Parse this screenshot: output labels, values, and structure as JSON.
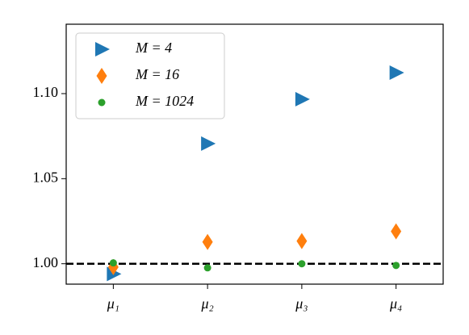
{
  "chart_data": {
    "type": "scatter",
    "categories": [
      "μ₁",
      "μ₂",
      "μ₃",
      "μ₄"
    ],
    "series": [
      {
        "name": "M = 4",
        "color": "#1f77b4",
        "marker": "triangle-right",
        "values": [
          0.994,
          1.0706,
          1.0967,
          1.1123
        ]
      },
      {
        "name": "M = 16",
        "color": "#ff7f0e",
        "marker": "diamond",
        "values": [
          0.998,
          1.0128,
          1.0133,
          1.019
        ]
      },
      {
        "name": "M = 1024",
        "color": "#2ca02c",
        "marker": "circle",
        "values": [
          1.0005,
          0.9976,
          1.0,
          0.999
        ]
      }
    ],
    "ylim": [
      0.988,
      1.1408
    ],
    "yticks": [
      {
        "value": 1,
        "label": "1.00"
      },
      {
        "value": 1.05,
        "label": "1.05"
      },
      {
        "value": 1.1,
        "label": "1.10"
      }
    ],
    "hline": 1,
    "legend": "upper left"
  }
}
